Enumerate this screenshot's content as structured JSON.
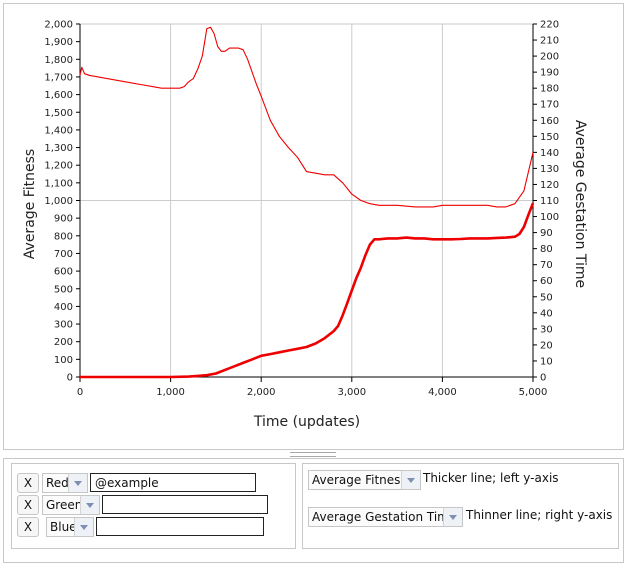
{
  "chart_data": {
    "type": "line",
    "xlabel": "Time (updates)",
    "ylabel_left": "Average Fitness",
    "ylabel_right": "Average Gestation Time",
    "xlim": [
      0,
      5000
    ],
    "ylim_left": [
      0,
      2000
    ],
    "ylim_right": [
      0,
      220
    ],
    "x_ticks": [
      "0",
      "1,000",
      "2,000",
      "3,000",
      "4,000",
      "5,000"
    ],
    "x_tick_values": [
      0,
      1000,
      2000,
      3000,
      4000,
      5000
    ],
    "y_left_ticks": [
      "0",
      "100",
      "200",
      "300",
      "400",
      "500",
      "600",
      "700",
      "800",
      "900",
      "1,000",
      "1,100",
      "1,200",
      "1,300",
      "1,400",
      "1,500",
      "1,600",
      "1,700",
      "1,800",
      "1,900",
      "2,000"
    ],
    "y_right_ticks": [
      "0",
      "10",
      "20",
      "30",
      "40",
      "50",
      "60",
      "70",
      "80",
      "90",
      "100",
      "110",
      "120",
      "130",
      "140",
      "150",
      "160",
      "170",
      "180",
      "190",
      "200",
      "210",
      "220"
    ],
    "grid": true,
    "series": [
      {
        "name": "Average Fitness",
        "axis": "left",
        "color": "#ee0000",
        "x": [
          0,
          500,
          1000,
          1200,
          1300,
          1400,
          1500,
          1600,
          1700,
          1800,
          1900,
          2000,
          2100,
          2200,
          2300,
          2400,
          2500,
          2600,
          2700,
          2800,
          2850,
          2900,
          2950,
          3000,
          3050,
          3100,
          3150,
          3200,
          3250,
          3300,
          3400,
          3500,
          3600,
          3700,
          3800,
          3900,
          4000,
          4100,
          4200,
          4300,
          4400,
          4500,
          4600,
          4700,
          4800,
          4850,
          4900,
          4950,
          5000
        ],
        "values": [
          0,
          0,
          0,
          2,
          6,
          10,
          20,
          40,
          60,
          80,
          100,
          120,
          130,
          140,
          150,
          160,
          170,
          190,
          220,
          260,
          290,
          350,
          420,
          490,
          560,
          620,
          690,
          750,
          780,
          780,
          785,
          785,
          790,
          785,
          785,
          780,
          780,
          780,
          782,
          785,
          785,
          785,
          788,
          790,
          795,
          810,
          850,
          920,
          985
        ]
      },
      {
        "name": "Average Gestation Time",
        "axis": "right",
        "color": "#ee0000",
        "x": [
          0,
          20,
          50,
          100,
          200,
          300,
          400,
          500,
          600,
          700,
          800,
          900,
          1000,
          1100,
          1150,
          1200,
          1250,
          1300,
          1350,
          1400,
          1440,
          1480,
          1520,
          1560,
          1600,
          1650,
          1700,
          1750,
          1800,
          1850,
          1900,
          1950,
          2000,
          2100,
          2200,
          2300,
          2400,
          2500,
          2600,
          2700,
          2800,
          2900,
          3000,
          3100,
          3200,
          3300,
          3500,
          3700,
          3900,
          4000,
          4200,
          4400,
          4500,
          4600,
          4700,
          4800,
          4900,
          5000
        ],
        "values": [
          188,
          193,
          189,
          188,
          187,
          186,
          185,
          184,
          183,
          182,
          181,
          180,
          180,
          180,
          181,
          184,
          186,
          192,
          200,
          217,
          218,
          214,
          206,
          203,
          203,
          205,
          205,
          205,
          204,
          198,
          190,
          182,
          175,
          160,
          150,
          143,
          137,
          128,
          127,
          126,
          126,
          121,
          114,
          110,
          108,
          107,
          107,
          106,
          106,
          107,
          107,
          107,
          107,
          106,
          106,
          108,
          116,
          140
        ]
      }
    ]
  },
  "colors_panel": {
    "rows": [
      {
        "remove_label": "X",
        "color_name": "Red",
        "text_value": "@example"
      },
      {
        "remove_label": "X",
        "color_name": "Green",
        "text_value": ""
      },
      {
        "remove_label": "X",
        "color_name": "Blue",
        "text_value": ""
      }
    ]
  },
  "axes_panel": {
    "left": {
      "selected": "Average Fitness",
      "description": "Thicker line; left y-axis"
    },
    "right": {
      "selected": "Average Gestation Time",
      "description": "Thinner line; right y-axis"
    }
  },
  "colors": {
    "line": "#ee0000",
    "grid": "#cccccc",
    "axis": "#000000"
  }
}
